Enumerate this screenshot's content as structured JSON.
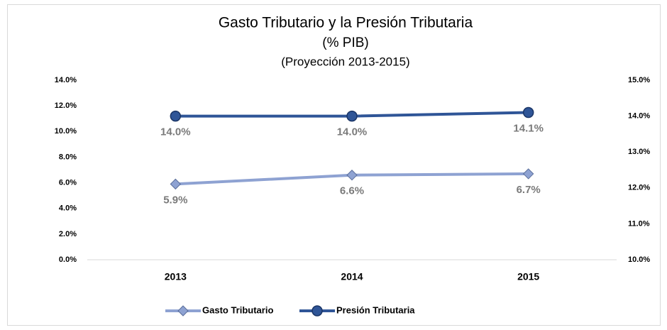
{
  "chart_data": {
    "type": "line",
    "title": "Gasto Tributario y la Presión Tributaria",
    "subtitle": [
      "(% PIB)",
      "(Proyección 2013-2015)"
    ],
    "categories": [
      "2013",
      "2014",
      "2015"
    ],
    "series": [
      {
        "name": "Gasto Tributario",
        "color": "#8ea2d2",
        "marker": "diamond",
        "values": [
          5.9,
          6.6,
          6.7
        ],
        "value_labels": [
          "5.9%",
          "6.6%",
          "6.7%"
        ]
      },
      {
        "name": "Presión Tributaria",
        "color": "#2f5597",
        "marker": "circle",
        "axis": "y2",
        "values": [
          14.0,
          14.0,
          14.1
        ],
        "value_labels": [
          "14.0%",
          "14.0%",
          "14.1%"
        ]
      }
    ],
    "ylim": [
      0,
      14
    ],
    "yticks": [
      {
        "value": 0,
        "label": "0.0%"
      },
      {
        "value": 2,
        "label": "2.0%"
      },
      {
        "value": 4,
        "label": "4.0%"
      },
      {
        "value": 6,
        "label": "6.0%"
      },
      {
        "value": 8,
        "label": "8.0%"
      },
      {
        "value": 10,
        "label": "10.0%"
      },
      {
        "value": 12,
        "label": "12.0%"
      },
      {
        "value": 14,
        "label": "14.0%"
      }
    ],
    "y2lim": [
      10,
      15
    ],
    "y2ticks": [
      {
        "value": 10,
        "label": "10.0%"
      },
      {
        "value": 11,
        "label": "11.0%"
      },
      {
        "value": 12,
        "label": "12.0%"
      },
      {
        "value": 13,
        "label": "13.0%"
      },
      {
        "value": 14,
        "label": "14.0%"
      },
      {
        "value": 15,
        "label": "15.0%"
      }
    ],
    "grid": false,
    "legend": "bottom"
  }
}
